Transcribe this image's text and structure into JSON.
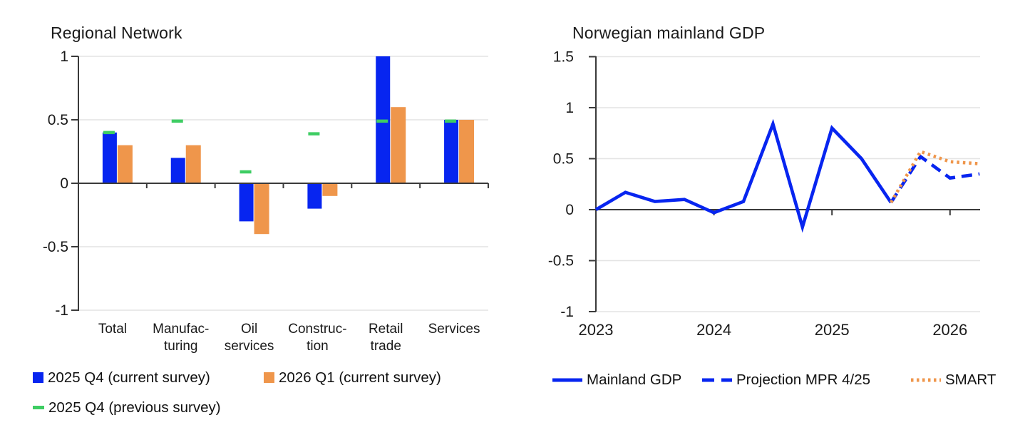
{
  "figure": {
    "background": "#ffffff",
    "left_panel_title": "Regional Network",
    "right_panel_title": "Norwegian mainland GDP"
  },
  "colors": {
    "series_blue": "#0725f0",
    "series_orange": "#ef964b",
    "series_green": "#3ecd63",
    "zero_line": "#3a3a3a",
    "axis_line": "#3a3a3a",
    "gridline": "#e4e4e4",
    "text": "#1a1a1a"
  },
  "left_legend": {
    "items": [
      {
        "label": "2025 Q4 (current survey)",
        "swatch": "blue-square"
      },
      {
        "label": "2026 Q1 (current survey)",
        "swatch": "orange-square"
      },
      {
        "label": "2025 Q4 (previous survey)",
        "swatch": "green-dash"
      }
    ]
  },
  "right_legend": {
    "items": [
      {
        "label": "Mainland GDP",
        "swatch": "blue-solid-line"
      },
      {
        "label": "Projection MPR 4/25",
        "swatch": "blue-dashed-line"
      },
      {
        "label": "SMART",
        "swatch": "orange-dotted-line"
      }
    ]
  },
  "chart_data": [
    {
      "type": "bar",
      "title": "Regional Network",
      "categories": [
        "Total",
        "Manufacturing",
        "Oil services",
        "Construction",
        "Retail trade",
        "Services"
      ],
      "category_label_lines": [
        [
          "Total"
        ],
        [
          "Manufac-",
          "turing"
        ],
        [
          "Oil",
          "services"
        ],
        [
          "Construc-",
          "tion"
        ],
        [
          "Retail",
          "trade"
        ],
        [
          "Services"
        ]
      ],
      "series": [
        {
          "name": "2025 Q4 (current survey)",
          "style": "bar",
          "color": "#0725f0",
          "values": [
            0.4,
            0.2,
            -0.3,
            -0.2,
            1.0,
            0.5
          ]
        },
        {
          "name": "2026 Q1 (current survey)",
          "style": "bar",
          "color": "#ef964b",
          "values": [
            0.3,
            0.3,
            -0.4,
            -0.1,
            0.6,
            0.5
          ]
        },
        {
          "name": "2025 Q4 (previous survey)",
          "style": "dash-marker",
          "color": "#3ecd63",
          "values": [
            0.4,
            0.49,
            0.09,
            0.39,
            0.49,
            0.49
          ]
        }
      ],
      "ylim": [
        -1,
        1
      ],
      "yticks": [
        1,
        0.5,
        0,
        -0.5,
        -1
      ],
      "grid": "horizontal",
      "legend_position": "bottom"
    },
    {
      "type": "line",
      "title": "Norwegian mainland GDP",
      "x_unit": "quarter",
      "x_start_label": "2023",
      "xtick_labels": [
        "2023",
        "2024",
        "2025",
        "2026"
      ],
      "xtick_quarter_index": [
        0,
        4,
        8,
        12
      ],
      "series": [
        {
          "name": "Mainland GDP",
          "style": "solid",
          "color": "#0725f0",
          "x_index_start": 0,
          "values": [
            0.0,
            0.17,
            0.08,
            0.1,
            -0.03,
            0.08,
            0.84,
            -0.17,
            0.8,
            0.5,
            0.07
          ]
        },
        {
          "name": "Projection MPR 4/25",
          "style": "dashed",
          "color": "#0725f0",
          "x_index_start": 10,
          "values": [
            0.07,
            0.52,
            0.31,
            0.35
          ]
        },
        {
          "name": "SMART",
          "style": "dotted",
          "color": "#ef964b",
          "x_index_start": 10,
          "values": [
            0.07,
            0.57,
            0.47,
            0.45
          ]
        }
      ],
      "ylim": [
        -1,
        1.5
      ],
      "yticks": [
        1.5,
        1,
        0.5,
        0,
        -0.5,
        -1
      ],
      "xlim_quarters": [
        0,
        13
      ],
      "grid": "horizontal",
      "legend_position": "bottom"
    }
  ]
}
